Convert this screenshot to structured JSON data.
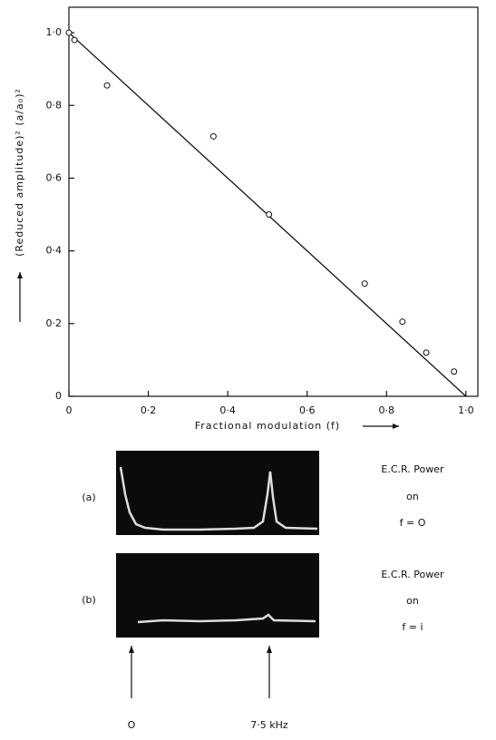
{
  "chart_data": {
    "type": "scatter",
    "x_label": "Fractional modulation (f)",
    "y_label": "(Reduced amplitude)² (a/a₀)²",
    "x": [
      0,
      0.014,
      0.096,
      0.364,
      0.504,
      0.745,
      0.84,
      0.9,
      0.97
    ],
    "values": [
      1.0,
      0.98,
      0.855,
      0.715,
      0.5,
      0.31,
      0.205,
      0.12,
      0.068
    ],
    "fit": {
      "x": [
        0,
        1.0
      ],
      "values": [
        1.0,
        0
      ]
    },
    "color": "#111",
    "xlim": [
      0,
      1.03
    ],
    "ylim": [
      0,
      1.07
    ],
    "xticks": [
      0,
      {
        "value": 0.2,
        "label": "0·2"
      },
      {
        "value": 0.4,
        "label": "0·4"
      },
      {
        "value": 0.6,
        "label": "0·6"
      },
      {
        "value": 0.8,
        "label": "0·8"
      },
      {
        "value": 1.0,
        "label": "1·0"
      }
    ],
    "yticks": [
      0,
      {
        "value": 0.2,
        "label": "0·2"
      },
      {
        "value": 0.4,
        "label": "0·4"
      },
      {
        "value": 0.6,
        "label": "0·6"
      },
      {
        "value": 0.8,
        "label": "0·8"
      },
      {
        "value": 1.0,
        "label": "1·0"
      }
    ]
  },
  "panels": [
    {
      "label": "(a)",
      "lines": [
        "E.C.R. Power",
        "on",
        "f = O"
      ]
    },
    {
      "label": "(b)",
      "lines": [
        "E.C.R. Power",
        "on",
        "f = i"
      ]
    }
  ],
  "markers": {
    "left": "O",
    "right": "7·5 kHz"
  }
}
